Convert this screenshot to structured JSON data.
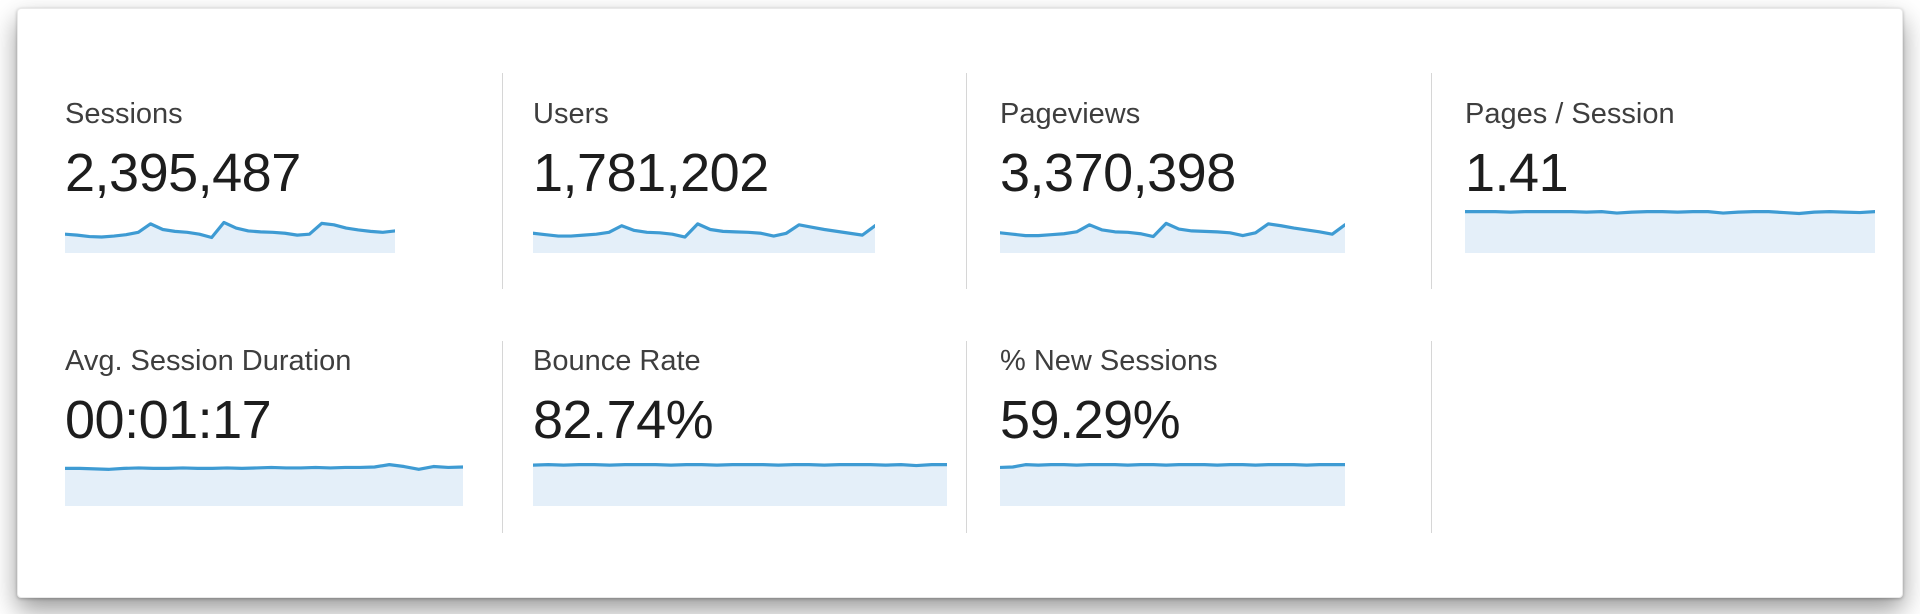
{
  "panel": {
    "name": "analytics-metrics-summary"
  },
  "colors": {
    "spark_line": "#3e9bd3",
    "spark_fill": "#e4eff9",
    "divider": "#d6d6d6",
    "label_text": "#3e3e3e",
    "value_text": "#1d1d1d",
    "panel_bg": "#ffffff"
  },
  "metrics": [
    {
      "label": "Sessions",
      "value": "2,395,487",
      "sparkline_normalized": [
        40,
        38,
        35,
        34,
        36,
        39,
        44,
        62,
        50,
        46,
        44,
        40,
        33,
        65,
        53,
        47,
        45,
        44,
        42,
        38,
        40,
        63,
        60,
        53,
        49,
        46,
        44,
        47
      ]
    },
    {
      "label": "Users",
      "value": "1,781,202",
      "sparkline_normalized": [
        42,
        39,
        36,
        36,
        38,
        40,
        44,
        58,
        48,
        44,
        43,
        40,
        34,
        62,
        50,
        46,
        45,
        44,
        42,
        36,
        42,
        60,
        55,
        50,
        46,
        42,
        38,
        58
      ]
    },
    {
      "label": "Pageviews",
      "value": "3,370,398",
      "sparkline_normalized": [
        43,
        40,
        37,
        37,
        39,
        41,
        45,
        60,
        49,
        45,
        44,
        41,
        35,
        63,
        51,
        47,
        46,
        45,
        43,
        37,
        43,
        62,
        58,
        53,
        49,
        45,
        40,
        60
      ]
    },
    {
      "label": "Pages / Session",
      "value": "1.41",
      "sparkline_normalized": [
        88,
        88,
        88,
        87,
        88,
        88,
        88,
        88,
        87,
        88,
        85,
        87,
        88,
        88,
        87,
        88,
        88,
        85,
        87,
        88,
        88,
        86,
        84,
        87,
        88,
        87,
        86,
        88
      ]
    },
    {
      "label": "Avg. Session Duration",
      "value": "00:01:17",
      "sparkline_normalized": [
        80,
        80,
        79,
        78,
        80,
        81,
        80,
        80,
        81,
        80,
        80,
        81,
        80,
        81,
        82,
        81,
        81,
        82,
        81,
        82,
        82,
        83,
        88,
        84,
        78,
        84,
        82,
        83
      ]
    },
    {
      "label": "Bounce Rate",
      "value": "82.74%",
      "sparkline_normalized": [
        87,
        88,
        87,
        88,
        88,
        87,
        88,
        88,
        88,
        87,
        88,
        88,
        87,
        88,
        88,
        88,
        87,
        88,
        88,
        87,
        88,
        88,
        88,
        87,
        88,
        86,
        88,
        88
      ]
    },
    {
      "label": "% New Sessions",
      "value": "59.29%",
      "sparkline_normalized": [
        82,
        83,
        88,
        87,
        88,
        88,
        87,
        88,
        88,
        88,
        87,
        88,
        88,
        87,
        88,
        88,
        88,
        87,
        88,
        88,
        87,
        88,
        88,
        88,
        87,
        88,
        88,
        88
      ]
    }
  ],
  "chart_data": [
    {
      "type": "line",
      "title": "Sessions sparkline",
      "legend": "none",
      "y_normalized_0to100": [
        40,
        38,
        35,
        34,
        36,
        39,
        44,
        62,
        50,
        46,
        44,
        40,
        33,
        65,
        53,
        47,
        45,
        44,
        42,
        38,
        40,
        63,
        60,
        53,
        49,
        46,
        44,
        47
      ]
    },
    {
      "type": "line",
      "title": "Users sparkline",
      "legend": "none",
      "y_normalized_0to100": [
        42,
        39,
        36,
        36,
        38,
        40,
        44,
        58,
        48,
        44,
        43,
        40,
        34,
        62,
        50,
        46,
        45,
        44,
        42,
        36,
        42,
        60,
        55,
        50,
        46,
        42,
        38,
        58
      ]
    },
    {
      "type": "line",
      "title": "Pageviews sparkline",
      "legend": "none",
      "y_normalized_0to100": [
        43,
        40,
        37,
        37,
        39,
        41,
        45,
        60,
        49,
        45,
        44,
        41,
        35,
        63,
        51,
        47,
        46,
        45,
        43,
        37,
        43,
        62,
        58,
        53,
        49,
        45,
        40,
        60
      ]
    },
    {
      "type": "line",
      "title": "Pages / Session sparkline",
      "legend": "none",
      "y_normalized_0to100": [
        88,
        88,
        88,
        87,
        88,
        88,
        88,
        88,
        87,
        88,
        85,
        87,
        88,
        88,
        87,
        88,
        88,
        85,
        87,
        88,
        88,
        86,
        84,
        87,
        88,
        87,
        86,
        88
      ]
    },
    {
      "type": "line",
      "title": "Avg. Session Duration sparkline",
      "legend": "none",
      "y_normalized_0to100": [
        80,
        80,
        79,
        78,
        80,
        81,
        80,
        80,
        81,
        80,
        80,
        81,
        80,
        81,
        82,
        81,
        81,
        82,
        81,
        82,
        82,
        83,
        88,
        84,
        78,
        84,
        82,
        83
      ]
    },
    {
      "type": "line",
      "title": "Bounce Rate sparkline",
      "legend": "none",
      "y_normalized_0to100": [
        87,
        88,
        87,
        88,
        88,
        87,
        88,
        88,
        88,
        87,
        88,
        88,
        87,
        88,
        88,
        88,
        87,
        88,
        88,
        87,
        88,
        88,
        88,
        87,
        88,
        86,
        88,
        88
      ]
    },
    {
      "type": "line",
      "title": "% New Sessions sparkline",
      "legend": "none",
      "y_normalized_0to100": [
        82,
        83,
        88,
        87,
        88,
        88,
        87,
        88,
        88,
        88,
        87,
        88,
        88,
        87,
        88,
        88,
        88,
        87,
        88,
        88,
        87,
        88,
        88,
        88,
        87,
        88,
        88,
        88
      ]
    }
  ]
}
